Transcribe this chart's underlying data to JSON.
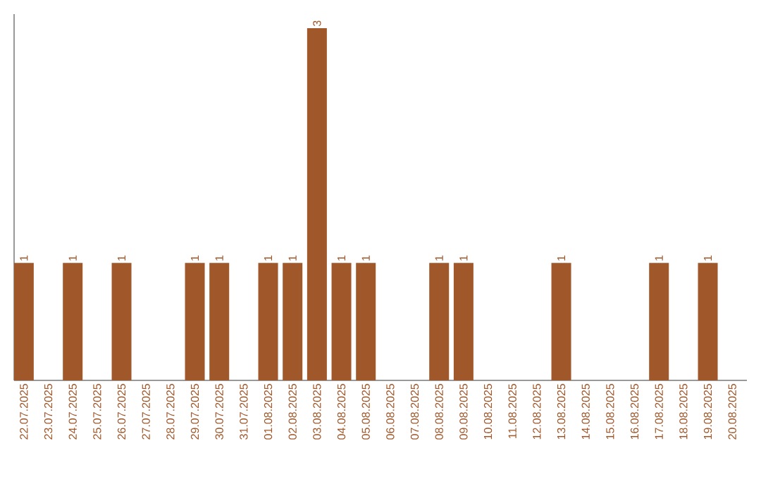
{
  "chart_data": {
    "type": "bar",
    "color": "#a0572a",
    "categories": [
      "22.07.2025",
      "23.07.2025",
      "24.07.2025",
      "25.07.2025",
      "26.07.2025",
      "27.07.2025",
      "28.07.2025",
      "29.07.2025",
      "30.07.2025",
      "31.07.2025",
      "01.08.2025",
      "02.08.2025",
      "03.08.2025",
      "04.08.2025",
      "05.08.2025",
      "06.08.2025",
      "07.08.2025",
      "08.08.2025",
      "09.08.2025",
      "10.08.2025",
      "11.08.2025",
      "12.08.2025",
      "13.08.2025",
      "14.08.2025",
      "15.08.2025",
      "16.08.2025",
      "17.08.2025",
      "18.08.2025",
      "19.08.2025",
      "20.08.2025"
    ],
    "values": [
      1,
      0,
      1,
      0,
      1,
      0,
      0,
      1,
      1,
      0,
      1,
      1,
      3,
      1,
      1,
      0,
      0,
      1,
      1,
      0,
      0,
      0,
      1,
      0,
      0,
      0,
      1,
      0,
      1,
      0
    ],
    "value_labels": [
      "1",
      null,
      "1",
      null,
      "1",
      null,
      null,
      "1",
      "1",
      null,
      "1",
      "1",
      "3",
      "1",
      "1",
      null,
      null,
      "1",
      "1",
      null,
      null,
      null,
      "1",
      null,
      null,
      null,
      "1",
      null,
      "1",
      null
    ],
    "data_labels": false
  }
}
